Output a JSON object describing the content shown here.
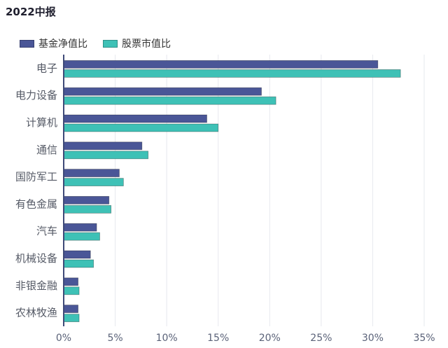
{
  "title": "2022中报",
  "legend": [
    {
      "label": "基金净值比",
      "color": "#4a5697"
    },
    {
      "label": "股票市值比",
      "color": "#3ec1b6"
    }
  ],
  "chart_data": {
    "type": "bar",
    "orientation": "horizontal",
    "title": "2022中报",
    "categories": [
      "电子",
      "电力设备",
      "计算机",
      "通信",
      "国防军工",
      "有色金属",
      "汽车",
      "机械设备",
      "非银金融",
      "农林牧渔"
    ],
    "series": [
      {
        "name": "基金净值比",
        "color": "#4a5697",
        "values": [
          30.5,
          19.2,
          13.9,
          7.6,
          5.4,
          4.4,
          3.2,
          2.6,
          1.4,
          1.4
        ]
      },
      {
        "name": "股票市值比",
        "color": "#3ec1b6",
        "values": [
          32.7,
          20.6,
          15.0,
          8.2,
          5.8,
          4.6,
          3.5,
          2.9,
          1.5,
          1.5
        ]
      }
    ],
    "xlim": [
      0,
      35
    ],
    "xticks": [
      0,
      5,
      10,
      15,
      20,
      25,
      30,
      35
    ],
    "tick_format": "%",
    "grid": true,
    "legend_position": "top-left"
  }
}
